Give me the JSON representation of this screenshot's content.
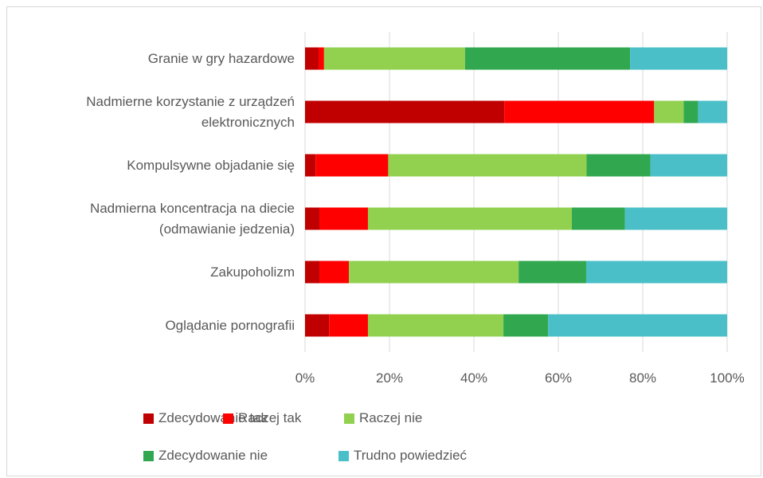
{
  "chart_data": {
    "type": "stacked_barh",
    "categories": [
      "Granie w gry hazardowe",
      "Nadmierne korzystanie z urządzeń\nelektronicznych",
      "Kompulsywne objadanie się",
      "Nadmierna koncentracja na diecie\n(odmawianie jedzenia)",
      "Zakupoholizm",
      "Oglądanie pornografii"
    ],
    "series": [
      {
        "name": "Zdecydowanie tak",
        "color": "#c00000",
        "values": [
          3.2,
          47.2,
          2.5,
          3.4,
          3.4,
          5.7
        ]
      },
      {
        "name": "Raczej tak",
        "color": "#ff0000",
        "values": [
          1.3,
          35.5,
          17.2,
          11.5,
          7.0,
          9.2
        ]
      },
      {
        "name": "Raczej nie",
        "color": "#92d050",
        "values": [
          33.4,
          7.0,
          47.0,
          48.3,
          40.2,
          32.1
        ]
      },
      {
        "name": "Zdecydowanie nie",
        "color": "#31a84f",
        "values": [
          39.1,
          3.4,
          15.1,
          12.6,
          16.0,
          10.6
        ]
      },
      {
        "name": "Trudno powiedzieć",
        "color": "#4bbfc8",
        "values": [
          23.0,
          6.9,
          18.2,
          24.2,
          33.4,
          42.4
        ]
      }
    ],
    "xlim": [
      0,
      100
    ],
    "xticks": [
      {
        "value": 0,
        "label": "0%"
      },
      {
        "value": 20,
        "label": "20%"
      },
      {
        "value": 40,
        "label": "40%"
      },
      {
        "value": 60,
        "label": "60%"
      },
      {
        "value": 80,
        "label": "80%"
      },
      {
        "value": 100,
        "label": "100%"
      }
    ],
    "grid": true
  }
}
